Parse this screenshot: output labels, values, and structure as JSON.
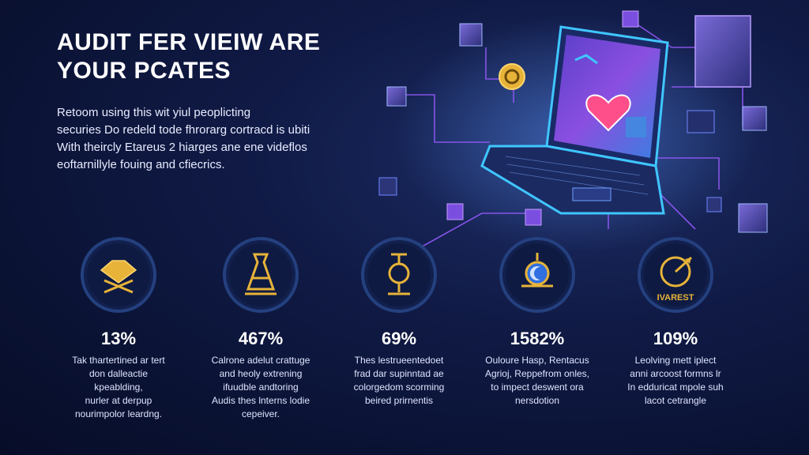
{
  "headline": {
    "lines": [
      "AUDIT FER VIEIW ARE",
      "YOUR PCATES"
    ]
  },
  "intro": {
    "lines": [
      "Retoom using this wit yiul peoplicting",
      "securies Do redeld tode fhrorarg cortracd is ubiti",
      "With theircly Etareus 2 hiarges ane ene videflos",
      "eoftarnillyle fouing and cfiecrics."
    ]
  },
  "stats": [
    {
      "icon": "crown-crossed-swords-icon",
      "value": "13%",
      "desc": [
        "Tak thartertined ar tert",
        "don dalleactie",
        "kpeablding,",
        "nurler at derpup",
        "nourimpolor leardng."
      ]
    },
    {
      "icon": "flask-pedestal-icon",
      "value": "467%",
      "desc": [
        "Calrone adelut crattuge",
        "and heoly extrening",
        "ifuudble andtoring",
        "Audis thes lnterns lodie",
        "cepeiver."
      ]
    },
    {
      "icon": "trophy-lamp-icon",
      "value": "69%",
      "desc": [
        "Thes lestrueentedoet",
        "frad dar supinntad ae",
        "colorgedom scorming",
        "beired prirnentis"
      ]
    },
    {
      "icon": "moon-shield-icon",
      "value": "1582%",
      "desc": [
        "Ouloure Hasp, Rentacus",
        "Agrioj, Reppefrom onles,",
        "to impect deswent ora",
        "nersdotion"
      ]
    },
    {
      "icon": "target-arrow-icon",
      "value": "109%",
      "badge_text": "IVAREST",
      "desc": [
        "Leolving mett iplect",
        "anni arcoost formns lr",
        "In edduricat mpole suh",
        "lacot cetrangle"
      ]
    }
  ],
  "colors": {
    "background": "#0a1233",
    "accent_gold": "#e7b339",
    "accent_purple": "#9a5bff",
    "accent_cyan": "#3fc6ff",
    "badge_ring": "#24407f"
  }
}
